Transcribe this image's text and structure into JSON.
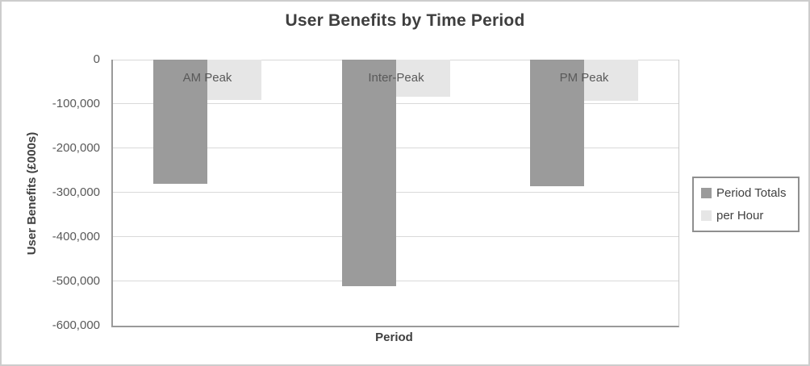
{
  "chart_data": {
    "type": "bar",
    "title": "User Benefits by Time Period",
    "xlabel": "Period",
    "ylabel": "User Benefits (£000s)",
    "categories": [
      "AM Peak",
      "Inter-Peak",
      "PM Peak"
    ],
    "series": [
      {
        "name": "Period Totals",
        "color": "#9b9b9b",
        "values": [
          -280000,
          -510000,
          -285000
        ]
      },
      {
        "name": "per Hour",
        "color": "#e6e6e6",
        "values": [
          -90000,
          -83000,
          -92000
        ]
      }
    ],
    "ylim": [
      -600000,
      0
    ],
    "yticks": [
      0,
      -100000,
      -200000,
      -300000,
      -400000,
      -500000,
      -600000
    ],
    "ytick_labels": [
      "0",
      "-100,000",
      "-200,000",
      "-300,000",
      "-400,000",
      "-500,000",
      "-600,000"
    ],
    "grid": true,
    "legend_position": "right"
  },
  "colors": {
    "page_border": "#cdcdcd",
    "axis": "#9a9a9a",
    "grid": "#d9d9d9",
    "plot_right_border": "#c9c9c9",
    "text": "#595959",
    "title_text": "#3f3f3f",
    "legend_border": "#8f8f8f"
  }
}
